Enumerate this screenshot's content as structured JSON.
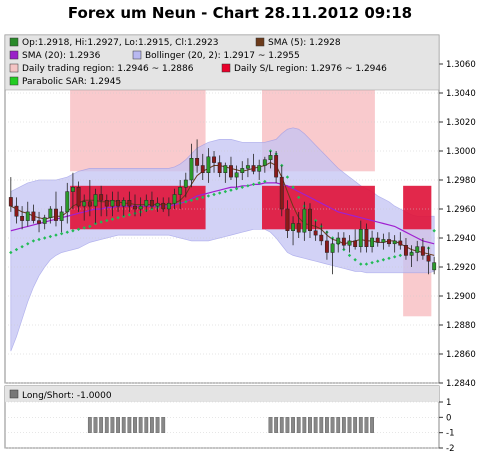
{
  "chart_data": {
    "type": "candlestick",
    "title": "Forex um Neun - Chart 28.11.2012 09:18",
    "ylim": [
      1.284,
      1.308
    ],
    "yticks": [
      "1.3060",
      "1.3040",
      "1.3020",
      "1.3000",
      "1.2980",
      "1.2960",
      "1.2940",
      "1.2920",
      "1.2900",
      "1.2880",
      "1.2860",
      "1.2840"
    ],
    "legend": [
      {
        "label": "Op:1.2918, Hi:1.2927, Lo:1.2915, Cl:1.2923",
        "color": "#2a8a2a"
      },
      {
        "label": "SMA (5): 1.2928",
        "color": "#6b3a1a"
      },
      {
        "label": "SMA (20): 1.2936",
        "color": "#9a22c8"
      },
      {
        "label": "Bollinger (20, 2): 1.2917 ~ 1.2955",
        "color": "#b8b8f0"
      },
      {
        "label": "Daily trading region: 1.2946 ~ 1.2886",
        "color": "#f4c4c4"
      },
      {
        "label": "Daily S/L region: 1.2976 ~ 1.2946",
        "color": "#e8002a"
      },
      {
        "label": "Parabolic SAR: 1.2945",
        "color": "#22cc22"
      }
    ],
    "candles": [
      [
        1.2968,
        1.2982,
        1.2958,
        1.2962
      ],
      [
        1.2962,
        1.2968,
        1.295,
        1.2955
      ],
      [
        1.2955,
        1.2962,
        1.2946,
        1.2952
      ],
      [
        1.2952,
        1.2965,
        1.2948,
        1.2958
      ],
      [
        1.2958,
        1.2963,
        1.295,
        1.2952
      ],
      [
        1.2952,
        1.2958,
        1.2944,
        1.295
      ],
      [
        1.295,
        1.2956,
        1.2946,
        1.2954
      ],
      [
        1.2954,
        1.2962,
        1.295,
        1.296
      ],
      [
        1.296,
        1.2972,
        1.2948,
        1.2952
      ],
      [
        1.2952,
        1.2962,
        1.2944,
        1.2958
      ],
      [
        1.2958,
        1.2978,
        1.295,
        1.2972
      ],
      [
        1.2972,
        1.2985,
        1.296,
        1.2975
      ],
      [
        1.2975,
        1.2979,
        1.2958,
        1.2962
      ],
      [
        1.2962,
        1.297,
        1.2952,
        1.2965
      ],
      [
        1.2965,
        1.298,
        1.2955,
        1.2962
      ],
      [
        1.2962,
        1.2974,
        1.295,
        1.297
      ],
      [
        1.297,
        1.2976,
        1.2955,
        1.2966
      ],
      [
        1.2966,
        1.297,
        1.2955,
        1.2962
      ],
      [
        1.2962,
        1.2972,
        1.2955,
        1.2966
      ],
      [
        1.2966,
        1.2972,
        1.2958,
        1.2962
      ],
      [
        1.2962,
        1.2968,
        1.2955,
        1.2966
      ],
      [
        1.2966,
        1.2972,
        1.2958,
        1.2962
      ],
      [
        1.2962,
        1.297,
        1.2955,
        1.296
      ],
      [
        1.296,
        1.2968,
        1.2955,
        1.2962
      ],
      [
        1.2962,
        1.297,
        1.2958,
        1.2966
      ],
      [
        1.2966,
        1.2972,
        1.296,
        1.2962
      ],
      [
        1.2962,
        1.2968,
        1.2958,
        1.2964
      ],
      [
        1.2964,
        1.2968,
        1.2958,
        1.296
      ],
      [
        1.296,
        1.2968,
        1.2955,
        1.2964
      ],
      [
        1.2964,
        1.2974,
        1.296,
        1.297
      ],
      [
        1.297,
        1.298,
        1.296,
        1.2975
      ],
      [
        1.2975,
        1.2985,
        1.2968,
        1.298
      ],
      [
        1.298,
        1.3005,
        1.2975,
        1.2995
      ],
      [
        1.2995,
        1.3008,
        1.2985,
        1.299
      ],
      [
        1.299,
        1.2998,
        1.298,
        1.2985
      ],
      [
        1.2985,
        1.3002,
        1.2978,
        1.2996
      ],
      [
        1.2996,
        1.3,
        1.2985,
        1.2992
      ],
      [
        1.2992,
        1.2997,
        1.2982,
        1.2985
      ],
      [
        1.2985,
        1.2992,
        1.2978,
        1.299
      ],
      [
        1.299,
        1.2996,
        1.298,
        1.2982
      ],
      [
        1.2982,
        1.299,
        1.2975,
        1.2985
      ],
      [
        1.2985,
        1.2993,
        1.298,
        1.2988
      ],
      [
        1.2988,
        1.2995,
        1.2982,
        1.299
      ],
      [
        1.299,
        1.2998,
        1.2984,
        1.2986
      ],
      [
        1.2986,
        1.2994,
        1.298,
        1.299
      ],
      [
        1.299,
        1.2996,
        1.2985,
        1.2994
      ],
      [
        1.2994,
        1.3,
        1.2988,
        1.2997
      ],
      [
        1.2997,
        1.3,
        1.2978,
        1.2982
      ],
      [
        1.2982,
        1.299,
        1.2955,
        1.296
      ],
      [
        1.296,
        1.2966,
        1.294,
        1.2945
      ],
      [
        1.2945,
        1.2955,
        1.2935,
        1.295
      ],
      [
        1.295,
        1.2958,
        1.294,
        1.2944
      ],
      [
        1.2944,
        1.2965,
        1.2938,
        1.296
      ],
      [
        1.296,
        1.2964,
        1.294,
        1.2945
      ],
      [
        1.2945,
        1.2952,
        1.2938,
        1.2942
      ],
      [
        1.2942,
        1.295,
        1.2935,
        1.2938
      ],
      [
        1.2938,
        1.2945,
        1.2925,
        1.293
      ],
      [
        1.293,
        1.294,
        1.2915,
        1.2936
      ],
      [
        1.2936,
        1.2944,
        1.293,
        1.294
      ],
      [
        1.294,
        1.2944,
        1.2932,
        1.2935
      ],
      [
        1.2935,
        1.2942,
        1.293,
        1.2938
      ],
      [
        1.2938,
        1.2946,
        1.2932,
        1.2934
      ],
      [
        1.2934,
        1.2952,
        1.293,
        1.2946
      ],
      [
        1.2946,
        1.295,
        1.293,
        1.2934
      ],
      [
        1.2934,
        1.2945,
        1.293,
        1.294
      ],
      [
        1.294,
        1.2944,
        1.2934,
        1.2937
      ],
      [
        1.2937,
        1.2943,
        1.2932,
        1.2939
      ],
      [
        1.2939,
        1.2944,
        1.2934,
        1.2936
      ],
      [
        1.2936,
        1.2942,
        1.293,
        1.2938
      ],
      [
        1.2938,
        1.2944,
        1.2932,
        1.2935
      ],
      [
        1.2935,
        1.294,
        1.2925,
        1.2928
      ],
      [
        1.2928,
        1.2935,
        1.292,
        1.293
      ],
      [
        1.293,
        1.2938,
        1.2924,
        1.2934
      ],
      [
        1.2934,
        1.294,
        1.2925,
        1.2928
      ],
      [
        1.2928,
        1.2934,
        1.2915,
        1.2924
      ],
      [
        1.2918,
        1.2927,
        1.2915,
        1.2923
      ]
    ],
    "sma20": [
      1.2945,
      1.2946,
      1.2947,
      1.2948,
      1.2949,
      1.295,
      1.2951,
      1.2952,
      1.2953,
      1.2954,
      1.2955,
      1.2956,
      1.2957,
      1.2958,
      1.2959,
      1.296,
      1.296,
      1.2961,
      1.2961,
      1.2962,
      1.2962,
      1.2962,
      1.2962,
      1.2962,
      1.2962,
      1.2962,
      1.2962,
      1.2962,
      1.2962,
      1.2963,
      1.2964,
      1.2965,
      1.2967,
      1.2969,
      1.297,
      1.2971,
      1.2972,
      1.2973,
      1.2974,
      1.2975,
      1.2975,
      1.2976,
      1.2976,
      1.2977,
      1.2977,
      1.2978,
      1.2978,
      1.2978,
      1.2977,
      1.2976,
      1.2974,
      1.2972,
      1.297,
      1.2968,
      1.2966,
      1.2964,
      1.2962,
      1.296,
      1.2958,
      1.2957,
      1.2956,
      1.2955,
      1.2954,
      1.2953,
      1.2952,
      1.2951,
      1.295,
      1.2949,
      1.2948,
      1.2946,
      1.2944,
      1.2942,
      1.294,
      1.2938,
      1.2937,
      1.2936
    ],
    "sma5": [
      1.2962,
      1.296,
      1.2958,
      1.2957,
      1.2955,
      1.2954,
      1.2953,
      1.2954,
      1.2955,
      1.2955,
      1.2958,
      1.2962,
      1.2964,
      1.2966,
      1.2966,
      1.2966,
      1.2965,
      1.2965,
      1.2966,
      1.2965,
      1.2964,
      1.2964,
      1.2963,
      1.2963,
      1.2963,
      1.2963,
      1.2963,
      1.2963,
      1.2963,
      1.2964,
      1.2966,
      1.297,
      1.2977,
      1.2983,
      1.2986,
      1.2988,
      1.299,
      1.299,
      1.2989,
      1.2988,
      1.2987,
      1.2986,
      1.2987,
      1.2988,
      1.2989,
      1.299,
      1.2992,
      1.299,
      1.2982,
      1.2972,
      1.2962,
      1.2954,
      1.295,
      1.2949,
      1.2948,
      1.2946,
      1.2942,
      1.2939,
      1.2938,
      1.2936,
      1.2937,
      1.2938,
      1.2939,
      1.2938,
      1.2938,
      1.2937,
      1.2937,
      1.2938,
      1.2938,
      1.2936,
      1.2934,
      1.2932,
      1.2931,
      1.293,
      1.2929,
      1.2928
    ],
    "bollinger_upper": [
      1.2972,
      1.2974,
      1.2976,
      1.2978,
      1.2979,
      1.298,
      1.298,
      1.298,
      1.298,
      1.2981,
      1.2982,
      1.2984,
      1.2986,
      1.2987,
      1.2988,
      1.2988,
      1.2988,
      1.2988,
      1.2988,
      1.2988,
      1.2988,
      1.2988,
      1.2988,
      1.2988,
      1.2988,
      1.2988,
      1.2988,
      1.2988,
      1.2988,
      1.2989,
      1.2991,
      1.2994,
      1.2998,
      1.3002,
      1.3004,
      1.3006,
      1.3007,
      1.3008,
      1.3008,
      1.3008,
      1.3007,
      1.3006,
      1.3006,
      1.3006,
      1.3006,
      1.3006,
      1.3007,
      1.3008,
      1.3012,
      1.3015,
      1.3016,
      1.3015,
      1.3012,
      1.3008,
      1.3004,
      1.3,
      1.2996,
      1.2992,
      1.2988,
      1.2985,
      1.2982,
      1.2979,
      1.2976,
      1.2974,
      1.2972,
      1.2969,
      1.2967,
      1.2965,
      1.2962,
      1.296,
      1.2958,
      1.2956,
      1.2955,
      1.2955,
      1.2955,
      1.2955
    ],
    "bollinger_lower": [
      1.2862,
      1.2872,
      1.2884,
      1.2896,
      1.2906,
      1.2914,
      1.292,
      1.2925,
      1.2928,
      1.293,
      1.2931,
      1.2932,
      1.2933,
      1.2935,
      1.2937,
      1.2938,
      1.2939,
      1.294,
      1.2941,
      1.2942,
      1.2942,
      1.2942,
      1.2942,
      1.2942,
      1.2942,
      1.2942,
      1.2942,
      1.2942,
      1.2942,
      1.2941,
      1.294,
      1.2939,
      1.2938,
      1.2938,
      1.2938,
      1.2938,
      1.2939,
      1.294,
      1.2941,
      1.2942,
      1.2943,
      1.2944,
      1.2945,
      1.2946,
      1.2946,
      1.2946,
      1.2944,
      1.294,
      1.2935,
      1.293,
      1.2928,
      1.2927,
      1.2926,
      1.2925,
      1.2924,
      1.2923,
      1.2922,
      1.2921,
      1.292,
      1.2919,
      1.2918,
      1.2917,
      1.2917,
      1.2916,
      1.2916,
      1.2916,
      1.2916,
      1.2916,
      1.2916,
      1.2916,
      1.2916,
      1.2916,
      1.2916,
      1.2916,
      1.2916,
      1.2917
    ],
    "sar": [
      1.293,
      1.2932,
      1.2934,
      1.2936,
      1.2938,
      1.2939,
      1.294,
      1.2941,
      1.2942,
      1.2943,
      1.2944,
      1.2945,
      1.2946,
      1.2947,
      1.2948,
      1.295,
      1.2951,
      1.2952,
      1.2953,
      1.2954,
      1.2955,
      1.2956,
      1.2957,
      1.2958,
      1.2959,
      1.296,
      1.2961,
      1.2962,
      1.2963,
      1.2964,
      1.2964,
      1.2965,
      1.2966,
      1.2967,
      1.2968,
      1.2969,
      1.297,
      1.2971,
      1.2972,
      1.2973,
      1.2974,
      1.2975,
      1.2976,
      1.2977,
      1.2978,
      1.2979,
      1.3,
      1.2998,
      1.299,
      1.2982,
      1.2975,
      1.2968,
      1.2962,
      1.2957,
      1.2952,
      1.2948,
      1.2944,
      1.294,
      1.2936,
      1.2932,
      1.2928,
      1.2925,
      1.2922,
      1.2922,
      1.2923,
      1.2924,
      1.2925,
      1.2926,
      1.2927,
      1.2928,
      1.2929,
      1.293,
      1.2931,
      1.2932,
      1.2933,
      1.2945
    ],
    "sl_regions": [
      {
        "from": 11,
        "to": 34,
        "hi": 1.2976,
        "lo": 1.2946
      },
      {
        "from": 45,
        "to": 64,
        "hi": 1.2976,
        "lo": 1.2946
      },
      {
        "from": 70,
        "to": 74,
        "hi": 1.2976,
        "lo": 1.2946
      }
    ],
    "trading_regions": [
      {
        "from": 11,
        "to": 34,
        "hi": 1.3046,
        "lo": 1.2986
      },
      {
        "from": 45,
        "to": 64,
        "hi": 1.3046,
        "lo": 1.2986
      },
      {
        "from": 70,
        "to": 74,
        "hi": 1.2946,
        "lo": 1.2886
      }
    ],
    "long_short": {
      "label": "Long/Short: -1.0000",
      "ylim": [
        -2,
        1
      ],
      "yticks": [
        "1",
        "0",
        "-1",
        "-2"
      ],
      "bars": [
        {
          "from": 14,
          "to": 27,
          "value": -1
        },
        {
          "from": 46,
          "to": 64,
          "value": -1
        }
      ]
    }
  }
}
